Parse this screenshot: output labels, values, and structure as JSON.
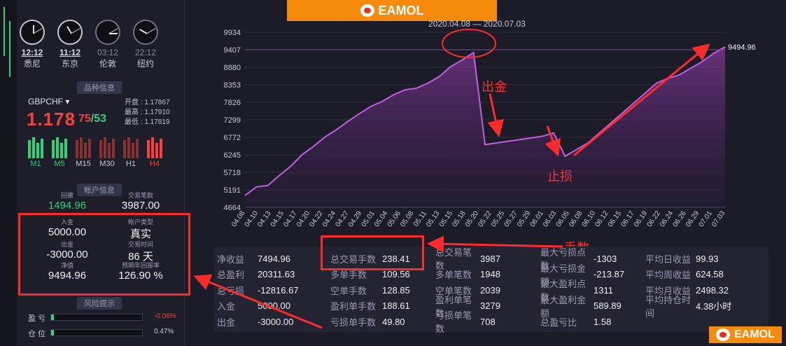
{
  "clocks": [
    {
      "time": "12:12",
      "city": "悉尼",
      "active": true,
      "h": 0,
      "m": 60
    },
    {
      "time": "11:12",
      "city": "东京",
      "active": true,
      "h": 330,
      "m": 60
    },
    {
      "time": "03:12",
      "city": "伦敦",
      "active": false,
      "h": 90,
      "m": 60
    },
    {
      "time": "22:12",
      "city": "纽约",
      "active": false,
      "h": 300,
      "m": 60
    }
  ],
  "symbol_section": {
    "title": "品种信息",
    "symbol": "GBPCHF",
    "price_main": "1.178",
    "price_tail_red": "75",
    "price_sep": "/",
    "price_tail_green": "53",
    "open": "开盘 : 1.17867",
    "high": "最高 : 1.17910",
    "low": "最低 : 1.17819"
  },
  "timeframes": [
    {
      "label": "M1",
      "color": "#2fd17a"
    },
    {
      "label": "M5",
      "color": "#2fd17a"
    },
    {
      "label": "M15",
      "color": "#c8c8d0"
    },
    {
      "label": "M30",
      "color": "#c8c8d0"
    },
    {
      "label": "H1",
      "color": "#c8c8d0"
    },
    {
      "label": "H4",
      "color": "#ff3d3d"
    }
  ],
  "account": {
    "title": "帐户信息",
    "drawdown_label": "回撤",
    "drawdown_value": "1494.96",
    "trades_label": "交易笔数",
    "trades_value": "3987.00",
    "deposit_label": "入金",
    "deposit_value": "5000.00",
    "type_label": "帐户类型",
    "type_value": "真实",
    "withdraw_label": "出金",
    "withdraw_value": "-3000.00",
    "time_label": "交易时间",
    "time_value": "86 天",
    "equity_label": "净值",
    "equity_value": "9494.96",
    "annual_label": "预期年回报率",
    "annual_value": "126.90 %"
  },
  "risk": {
    "title": "风险提示",
    "rows": [
      {
        "label": "盈 亏",
        "value": "-0.06%",
        "color": "#ff3d3d"
      },
      {
        "label": "仓 位",
        "value": "0.47%",
        "color": "#c8c8d0"
      }
    ]
  },
  "logo": {
    "text": "EAMOL"
  },
  "chart": {
    "date_range": "2020.04.08 — 2020.07.03",
    "end_label": "9494.96",
    "annot_withdraw": "出金",
    "annot_stoploss": "止损",
    "annot_lots": "手数"
  },
  "chart_data": {
    "type": "area",
    "title": "2020.04.08 — 2020.07.03",
    "y_ticks": [
      4664,
      5191,
      5718,
      6245,
      6772,
      7299,
      7826,
      8353,
      8880,
      9407,
      9934
    ],
    "ylim": [
      4664,
      9934
    ],
    "x_ticks": [
      "04.08",
      "04.10",
      "04.13",
      "04.15",
      "04.17",
      "04.20",
      "04.22",
      "04.24",
      "04.27",
      "04.29",
      "05.01",
      "05.04",
      "05.06",
      "05.08",
      "05.11",
      "05.13",
      "05.15",
      "05.18",
      "05.20",
      "05.22",
      "05.25",
      "05.27",
      "05.29",
      "06.01",
      "06.03",
      "06.05",
      "06.08",
      "06.10",
      "06.12",
      "06.15",
      "06.17",
      "06.19",
      "06.22",
      "06.24",
      "06.26",
      "06.29",
      "07.01",
      "07.03"
    ],
    "values": [
      5020,
      5280,
      5320,
      5620,
      5900,
      6250,
      6500,
      6780,
      7000,
      7250,
      7480,
      7700,
      7850,
      8050,
      8200,
      8250,
      8400,
      8600,
      8900,
      9100,
      9320,
      6550,
      6600,
      6650,
      6700,
      6750,
      6800,
      6900,
      6200,
      6400,
      6600,
      6900,
      7200,
      7500,
      7800,
      8100,
      8400,
      8550,
      8650,
      8850,
      9050,
      9300,
      9494.96
    ],
    "series": [
      {
        "name": "",
        "values": []
      }
    ]
  },
  "stats": [
    [
      [
        "净收益",
        "7494.96"
      ],
      [
        "总盈利",
        "20311.63"
      ],
      [
        "总亏损",
        "-12816.67"
      ],
      [
        "入金",
        "5000.00"
      ],
      [
        "出金",
        "-3000.00"
      ]
    ],
    [
      [
        "总交易手数",
        "238.41"
      ],
      [
        "多单手数",
        "109.56"
      ],
      [
        "空单手数",
        "128.85"
      ],
      [
        "盈利单手数",
        "188.61"
      ],
      [
        "亏损单手数",
        "49.80"
      ]
    ],
    [
      [
        "总交易笔数",
        "3987"
      ],
      [
        "多单笔数",
        "1948"
      ],
      [
        "空单笔数",
        "2039"
      ],
      [
        "盈利单笔数",
        "3279"
      ],
      [
        "亏损单笔数",
        "708"
      ]
    ],
    [
      [
        "最大亏损点数",
        "-1303"
      ],
      [
        "最大亏损金额",
        "-213.87"
      ],
      [
        "最大盈利点数",
        "1311"
      ],
      [
        "最大盈利金额",
        "589.89"
      ],
      [
        "总盈亏比",
        "1.58"
      ]
    ],
    [
      [
        "平均日收益",
        "99.93"
      ],
      [
        "平均周收益",
        "624.58"
      ],
      [
        "平均月收益",
        "2498.32"
      ],
      [
        "平均持仓时间",
        "4.38小时"
      ]
    ]
  ]
}
